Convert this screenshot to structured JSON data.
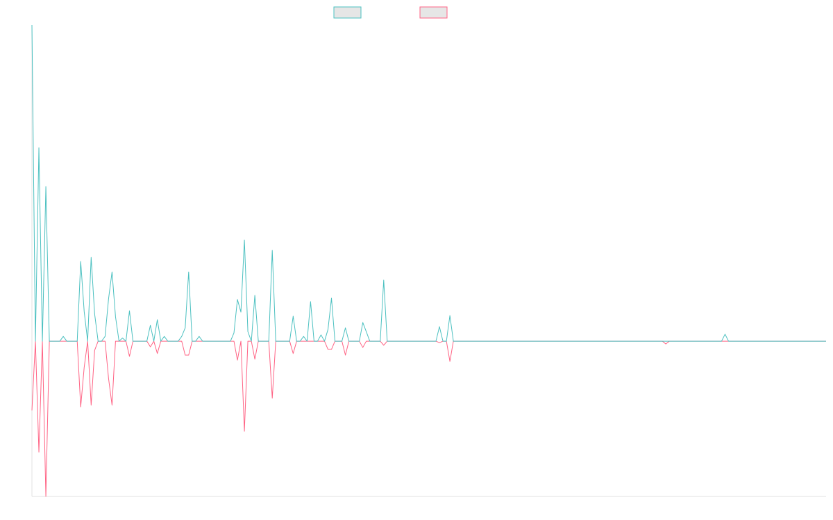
{
  "chart_data": {
    "type": "line",
    "ylim": [
      -49.1,
      100
    ],
    "series": [
      {
        "color": "#4bc0c0",
        "values": [
          100,
          0,
          61.2,
          0,
          48.9,
          0,
          0,
          0,
          0,
          1.5,
          0,
          0,
          0,
          0,
          25.2,
          9.4,
          0,
          26.5,
          8.6,
          0,
          0,
          1.5,
          13.4,
          21.9,
          7.7,
          0,
          1,
          0,
          9.6,
          0,
          0,
          0,
          0,
          0,
          5,
          0,
          6.8,
          0,
          1.5,
          0,
          0,
          0,
          0,
          1.5,
          4.2,
          21.9,
          0,
          0,
          1.5,
          0,
          0,
          0,
          0,
          0,
          0,
          0,
          0,
          0,
          2.6,
          13.2,
          9.2,
          32,
          3,
          0,
          14.5,
          0,
          0,
          0,
          0,
          28.7,
          0,
          0,
          0,
          0,
          0,
          7.9,
          0,
          0,
          1.5,
          0,
          12.5,
          0,
          0,
          2,
          0,
          3.7,
          13.6,
          0,
          0,
          0,
          4.2,
          0,
          0,
          0,
          0,
          5.9,
          3,
          0,
          0,
          0,
          0,
          19.3,
          0,
          0,
          0,
          0,
          0,
          0,
          0,
          0,
          0,
          0,
          0,
          0,
          0,
          0,
          0,
          4.6,
          0,
          0,
          8.1,
          0,
          0,
          0,
          0,
          0,
          0,
          0,
          0,
          0,
          0,
          0,
          0,
          0,
          0,
          0,
          0,
          0,
          0,
          0,
          0,
          0,
          0,
          0,
          0,
          0,
          0,
          0,
          0,
          0,
          0,
          0,
          0,
          0,
          0,
          0,
          0,
          0,
          0,
          0,
          0,
          0,
          0,
          0,
          0,
          0,
          0,
          0,
          0,
          0,
          0,
          0,
          0,
          0,
          0,
          0,
          0,
          0,
          0,
          0,
          0,
          0,
          0,
          0,
          0,
          0,
          0,
          0,
          0,
          0,
          0,
          0,
          0,
          0,
          0,
          0,
          0,
          0,
          0,
          2.2,
          0,
          0,
          0,
          0,
          0,
          0,
          0,
          0,
          0,
          0,
          0,
          0,
          0,
          0,
          0,
          0,
          0,
          0,
          0,
          0,
          0,
          0,
          0,
          0,
          0,
          0,
          0,
          0,
          0
        ]
      },
      {
        "color": "#ff6384",
        "values": [
          -21.9,
          0,
          -35.1,
          0,
          -49.1,
          0,
          0,
          0,
          0,
          0,
          0,
          0,
          0,
          0,
          -20.8,
          -8.3,
          0,
          -20.2,
          -2.9,
          0,
          0,
          0,
          -11.8,
          -20.2,
          0,
          0,
          0,
          0,
          -4.8,
          0,
          0,
          0,
          0,
          0,
          -1.8,
          0,
          -3.9,
          0,
          0,
          0,
          0,
          0,
          0,
          0,
          -4.4,
          -4.4,
          0,
          0,
          0,
          0,
          0,
          0,
          0,
          0,
          0,
          0,
          0,
          0,
          0,
          -6,
          0,
          -28.5,
          0,
          0,
          -5.7,
          0,
          0,
          0,
          0,
          -18,
          0,
          0,
          0,
          0,
          0,
          -3.9,
          0,
          0,
          0,
          0,
          0,
          0,
          0,
          0,
          0,
          -2.6,
          -2.6,
          0,
          0,
          0,
          -4.4,
          0,
          0,
          0,
          0,
          -2,
          0,
          0,
          0,
          0,
          0,
          -1.3,
          0,
          0,
          0,
          0,
          0,
          0,
          0,
          0,
          0,
          0,
          0,
          0,
          0,
          0,
          0,
          -0.5,
          0,
          0,
          -6.4,
          0,
          0,
          0,
          0,
          0,
          0,
          0,
          0,
          0,
          0,
          0,
          0,
          0,
          0,
          0,
          0,
          0,
          0,
          0,
          0,
          0,
          0,
          0,
          0,
          0,
          0,
          0,
          0,
          0,
          0,
          0,
          0,
          0,
          0,
          0,
          0,
          0,
          0,
          0,
          0,
          0,
          0,
          0,
          0,
          0,
          0,
          0,
          0,
          0,
          0,
          0,
          0,
          0,
          0,
          0,
          0,
          0,
          0,
          0,
          0,
          0,
          -0.9,
          0,
          0,
          0,
          0,
          0,
          0,
          0,
          0,
          0,
          0,
          0,
          0,
          0,
          0,
          0,
          0,
          0,
          0,
          0,
          0,
          0,
          0,
          0,
          0,
          0,
          0,
          0,
          0,
          0,
          0,
          0,
          0,
          0,
          0,
          0,
          0,
          0,
          0,
          0,
          0,
          0,
          0,
          0,
          0,
          0,
          0
        ]
      }
    ]
  }
}
